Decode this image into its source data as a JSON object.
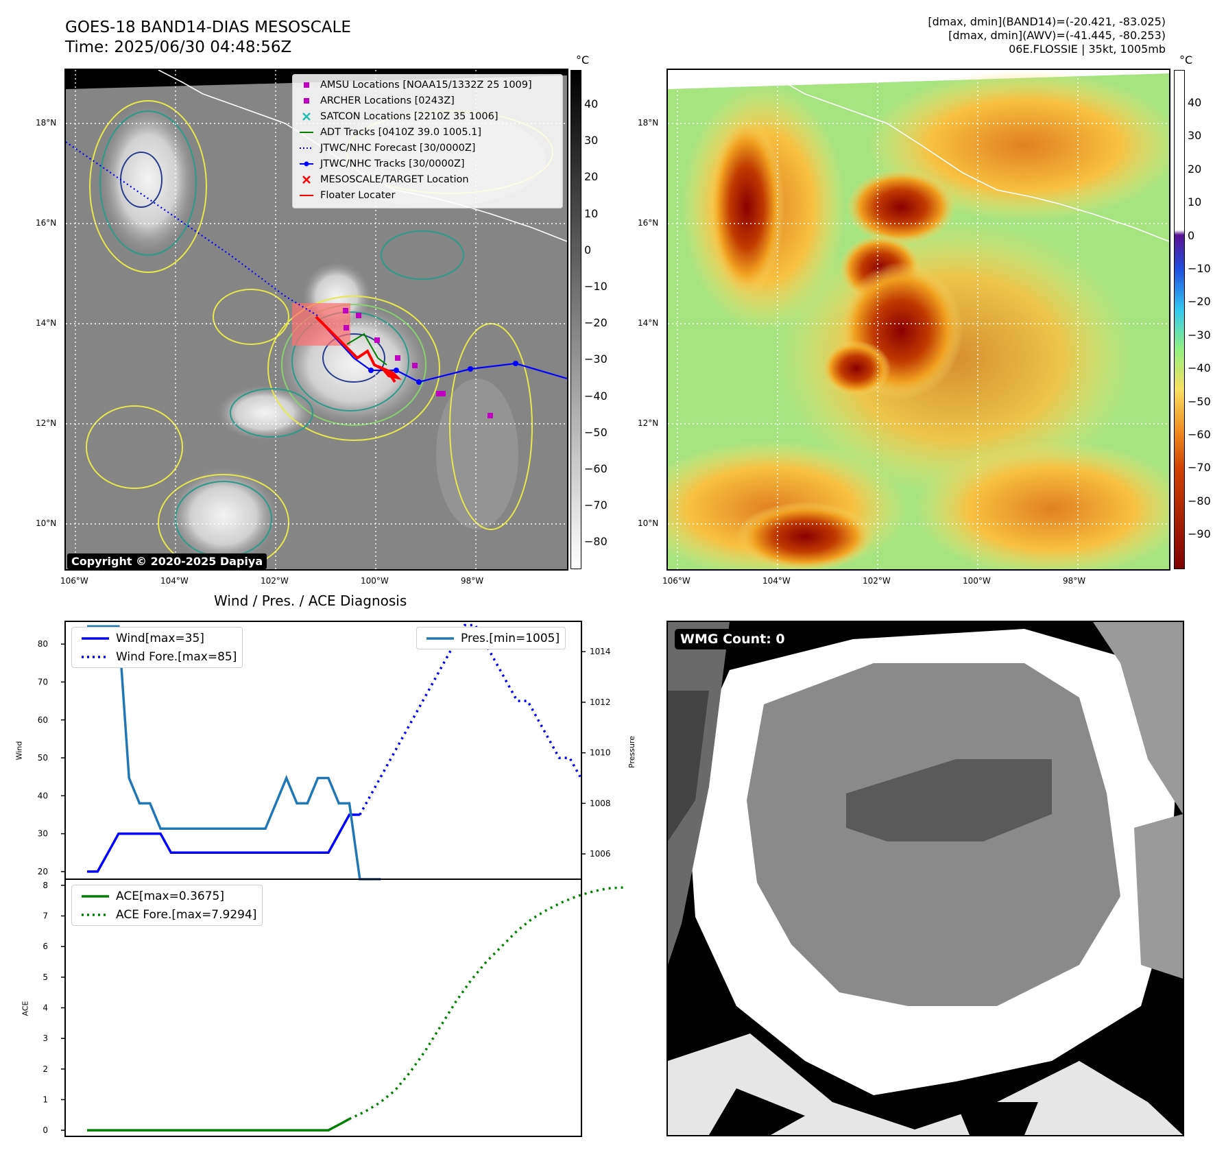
{
  "header": {
    "title_line1": "GOES-18 BAND14-DIAS MESOSCALE",
    "title_line2": "Time: 2025/06/30 04:48:56Z",
    "info_line1": "[dmax, dmin](BAND14)=(-20.421, -83.025)",
    "info_line2": "[dmax, dmin](AWV)=(-41.445, -80.253)",
    "info_line3": "06E.FLOSSIE | 35kt, 1005mb"
  },
  "map_axes": {
    "lat_labels": [
      "18°N",
      "16°N",
      "14°N",
      "12°N",
      "10°N"
    ],
    "lon_labels": [
      "106°W",
      "104°W",
      "102°W",
      "100°W",
      "98°W"
    ]
  },
  "left_map": {
    "legend": [
      {
        "label": "AMSU Locations [NOAA15/1332Z 25 1009]",
        "marker": "square",
        "color": "#c000c0"
      },
      {
        "label": "ARCHER Locations [0243Z]",
        "marker": "square",
        "color": "#c000c0"
      },
      {
        "label": "SATCON Locations [2210Z 35 1006]",
        "marker": "x",
        "color": "#20c0b0"
      },
      {
        "label": "ADT Tracks [0410Z 39.0 1005.1]",
        "marker": "line",
        "color": "#008000"
      },
      {
        "label": "JTWC/NHC Forecast [30/0000Z]",
        "marker": "dotted",
        "color": "#0000ff"
      },
      {
        "label": "JTWC/NHC Tracks [30/0000Z]",
        "marker": "line-dot",
        "color": "#0000ff"
      },
      {
        "label": "MESOSCALE/TARGET Location",
        "marker": "x",
        "color": "#ff0000"
      },
      {
        "label": "Floater Locater",
        "marker": "line",
        "color": "#ff0000"
      }
    ],
    "copyright": "Copyright © 2020-2025 Dapiya",
    "colorbar_unit": "°C",
    "colorbar_ticks": [
      "40",
      "30",
      "20",
      "10",
      "0",
      "−10",
      "−20",
      "−30",
      "−40",
      "−50",
      "−60",
      "−70",
      "−80"
    ]
  },
  "right_map": {
    "colorbar_unit": "°C",
    "colorbar_ticks": [
      "40",
      "30",
      "20",
      "10",
      "0",
      "−10",
      "−20",
      "−30",
      "−40",
      "−50",
      "−60",
      "−70",
      "−80",
      "−90"
    ]
  },
  "diagnosis": {
    "title": "Wind / Pres. / ACE Diagnosis",
    "wind_ylabel": "Wind",
    "pressure_ylabel": "Pressure",
    "ace_ylabel": "ACE"
  },
  "chart_data": [
    {
      "type": "line",
      "title": "Wind / Pres. / ACE Diagnosis",
      "ylabel": "Wind",
      "ylim": [
        18,
        86
      ],
      "y_ticks": [
        "80",
        "70",
        "60",
        "50",
        "40",
        "30",
        "20"
      ],
      "series": [
        {
          "name": "Wind[max=35]",
          "style": "solid",
          "color": "#0000ff",
          "values": [
            20,
            20,
            25,
            30,
            30,
            30,
            30,
            30,
            25,
            25,
            25,
            25,
            25,
            25,
            25,
            25,
            25,
            25,
            25,
            25,
            25,
            25,
            25,
            25,
            30,
            35,
            35
          ]
        },
        {
          "name": "Wind Fore.[max=85]",
          "style": "dotted",
          "color": "#0000ff",
          "values": [
            35,
            40,
            45,
            50,
            55,
            60,
            65,
            70,
            75,
            80,
            85,
            85,
            80,
            75,
            70,
            65,
            65,
            60,
            55,
            50,
            50,
            45
          ]
        }
      ]
    },
    {
      "type": "line",
      "ylabel": "Pressure",
      "ylim": [
        1005,
        1015.2
      ],
      "y_ticks": [
        "1014",
        "1012",
        "1010",
        "1008",
        "1006"
      ],
      "series": [
        {
          "name": "Pres.[min=1005]",
          "style": "solid",
          "color": "#1f77b4",
          "values": [
            1015,
            1015,
            1015,
            1015,
            1009,
            1008,
            1008,
            1007,
            1007,
            1007,
            1007,
            1007,
            1007,
            1007,
            1007,
            1007,
            1007,
            1007,
            1008,
            1009,
            1008,
            1008,
            1009,
            1009,
            1008,
            1008,
            1005,
            1005,
            1005
          ]
        }
      ]
    },
    {
      "type": "line",
      "ylabel": "ACE",
      "ylim": [
        -0.2,
        8.2
      ],
      "y_ticks": [
        "8",
        "7",
        "6",
        "5",
        "4",
        "3",
        "2",
        "1",
        "0"
      ],
      "series": [
        {
          "name": "ACE[max=0.3675]",
          "style": "solid",
          "color": "#008000",
          "values": [
            0,
            0,
            0,
            0,
            0,
            0,
            0,
            0,
            0,
            0,
            0,
            0,
            0,
            0,
            0,
            0,
            0,
            0,
            0,
            0,
            0,
            0,
            0,
            0,
            0.18,
            0.37
          ]
        },
        {
          "name": "ACE Fore.[max=7.9294]",
          "style": "dotted",
          "color": "#008000",
          "values": [
            0.37,
            0.6,
            0.9,
            1.3,
            1.9,
            2.6,
            3.4,
            4.2,
            4.9,
            5.5,
            6.0,
            6.5,
            6.9,
            7.2,
            7.45,
            7.65,
            7.8,
            7.9,
            7.93
          ]
        }
      ]
    }
  ],
  "wmg": {
    "label": "WMG Count: 0"
  }
}
